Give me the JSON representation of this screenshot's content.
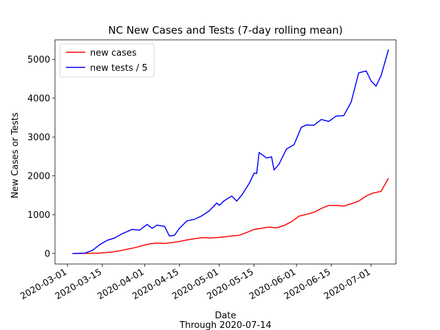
{
  "chart_data": {
    "type": "line",
    "title": "NC New Cases and Tests (7-day rolling mean)",
    "xlabel": "Date",
    "xlabel_sub": "Through 2020-07-14",
    "ylabel": "New Cases or Tests",
    "xlim": [
      "2020-02-25",
      "2020-07-11"
    ],
    "ylim": [
      -270,
      5500
    ],
    "x_ticks": [
      "2020-03-01",
      "2020-03-15",
      "2020-04-01",
      "2020-04-15",
      "2020-05-01",
      "2020-05-15",
      "2020-06-01",
      "2020-06-15",
      "2020-07-01"
    ],
    "y_ticks": [
      0,
      1000,
      2000,
      3000,
      4000,
      5000
    ],
    "y_tick_labels": [
      "0",
      "1000",
      "2000",
      "3000",
      "4000",
      "5000"
    ],
    "grid": false,
    "legend_position": "top-left",
    "series": [
      {
        "name": "new cases",
        "color": "#ff0000",
        "x": [
          "2020-03-03",
          "2020-03-10",
          "2020-03-13",
          "2020-03-16",
          "2020-03-19",
          "2020-03-22",
          "2020-03-25",
          "2020-03-28",
          "2020-03-31",
          "2020-04-03",
          "2020-04-06",
          "2020-04-09",
          "2020-04-12",
          "2020-04-15",
          "2020-04-18",
          "2020-04-21",
          "2020-04-24",
          "2020-04-27",
          "2020-04-30",
          "2020-05-03",
          "2020-05-06",
          "2020-05-09",
          "2020-05-12",
          "2020-05-15",
          "2020-05-18",
          "2020-05-21",
          "2020-05-24",
          "2020-05-27",
          "2020-05-30",
          "2020-06-02",
          "2020-06-05",
          "2020-06-08",
          "2020-06-11",
          "2020-06-14",
          "2020-06-17",
          "2020-06-20",
          "2020-06-23",
          "2020-06-26",
          "2020-06-29",
          "2020-07-02",
          "2020-07-05",
          "2020-07-08"
        ],
        "y": [
          0,
          5,
          10,
          20,
          40,
          70,
          110,
          150,
          200,
          250,
          270,
          260,
          280,
          310,
          350,
          380,
          410,
          400,
          410,
          430,
          450,
          470,
          540,
          620,
          650,
          680,
          660,
          720,
          820,
          960,
          1010,
          1060,
          1160,
          1240,
          1240,
          1220,
          1280,
          1350,
          1480,
          1560,
          1600,
          1940
        ]
      },
      {
        "name": "new tests / 5",
        "color": "#0000ff",
        "x": [
          "2020-03-03",
          "2020-03-08",
          "2020-03-11",
          "2020-03-14",
          "2020-03-17",
          "2020-03-20",
          "2020-03-23",
          "2020-03-27",
          "2020-03-30",
          "2020-04-02",
          "2020-04-04",
          "2020-04-06",
          "2020-04-09",
          "2020-04-11",
          "2020-04-13",
          "2020-04-15",
          "2020-04-18",
          "2020-04-21",
          "2020-04-24",
          "2020-04-27",
          "2020-04-30",
          "2020-05-01",
          "2020-05-03",
          "2020-05-06",
          "2020-05-08",
          "2020-05-10",
          "2020-05-13",
          "2020-05-15",
          "2020-05-16",
          "2020-05-17",
          "2020-05-20",
          "2020-05-22",
          "2020-05-23",
          "2020-05-25",
          "2020-05-28",
          "2020-05-31",
          "2020-06-03",
          "2020-06-05",
          "2020-06-08",
          "2020-06-11",
          "2020-06-14",
          "2020-06-17",
          "2020-06-20",
          "2020-06-23",
          "2020-06-26",
          "2020-06-29",
          "2020-07-01",
          "2020-07-03",
          "2020-07-05",
          "2020-07-08"
        ],
        "y": [
          0,
          10,
          80,
          230,
          340,
          400,
          510,
          620,
          600,
          750,
          650,
          730,
          700,
          450,
          470,
          650,
          840,
          880,
          970,
          1100,
          1300,
          1240,
          1360,
          1480,
          1350,
          1500,
          1800,
          2070,
          2060,
          2600,
          2460,
          2490,
          2150,
          2300,
          2690,
          2800,
          3250,
          3310,
          3300,
          3450,
          3400,
          3540,
          3550,
          3900,
          4650,
          4700,
          4440,
          4310,
          4580,
          5250
        ]
      }
    ]
  }
}
